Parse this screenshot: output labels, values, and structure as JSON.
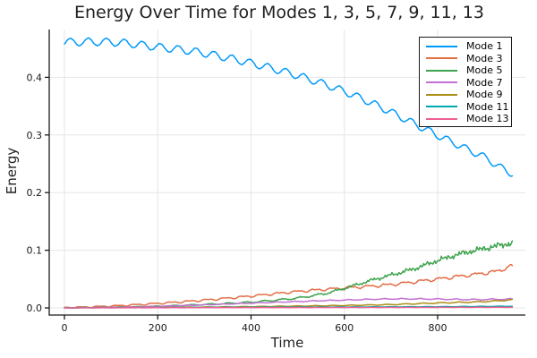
{
  "figure": {
    "background": "#ffffff",
    "title_color": "#1f1f1f"
  },
  "chart_data": {
    "type": "line",
    "title": "Energy Over Time for Modes 1, 3, 5, 7, 9, 11, 13",
    "xlabel": "Time",
    "ylabel": "Energy",
    "xlim": [
      -32.6,
      988
    ],
    "ylim": [
      -0.0124,
      0.4829
    ],
    "grid": true,
    "grid_color": "#e6e6e6",
    "axis_color": "#1a1a1a",
    "tick_label_color": "#1a1a1a",
    "legend_position": "top-right",
    "xticks": [
      {
        "value": 0,
        "label": "0"
      },
      {
        "value": 200,
        "label": "200"
      },
      {
        "value": 400,
        "label": "400"
      },
      {
        "value": 600,
        "label": "600"
      },
      {
        "value": 800,
        "label": "800"
      }
    ],
    "yticks": [
      {
        "value": 0.0,
        "label": "0.0"
      },
      {
        "value": 0.1,
        "label": "0.1"
      },
      {
        "value": 0.2,
        "label": "0.2"
      },
      {
        "value": 0.3,
        "label": "0.3"
      },
      {
        "value": 0.4,
        "label": "0.4"
      }
    ],
    "sampling": {
      "t_start": 0,
      "t_end": 960,
      "dt": 2
    },
    "series": [
      {
        "name": "Mode 1",
        "color": "#009af9",
        "keyframes": [
          [
            0,
            0.461
          ],
          [
            60,
            0.4615
          ],
          [
            120,
            0.46
          ],
          [
            200,
            0.4525
          ],
          [
            280,
            0.4445
          ],
          [
            360,
            0.432
          ],
          [
            440,
            0.4165
          ],
          [
            520,
            0.398
          ],
          [
            600,
            0.3755
          ],
          [
            680,
            0.3475
          ],
          [
            760,
            0.3155
          ],
          [
            840,
            0.2845
          ],
          [
            900,
            0.2615
          ],
          [
            960,
            0.2335
          ]
        ],
        "osc": {
          "type": "sin",
          "period": 38.5,
          "phase": -0.5,
          "amp0": 0.0065,
          "amp1": 0.006
        },
        "noise": {
          "rel": 0.0015,
          "seed": 1
        }
      },
      {
        "name": "Mode 3",
        "color": "#e36f47",
        "keyframes": [
          [
            0,
            0.0006
          ],
          [
            100,
            0.0032
          ],
          [
            200,
            0.0078
          ],
          [
            300,
            0.0135
          ],
          [
            400,
            0.0205
          ],
          [
            500,
            0.0285
          ],
          [
            600,
            0.0345
          ],
          [
            700,
            0.0405
          ],
          [
            800,
            0.05
          ],
          [
            880,
            0.058
          ],
          [
            930,
            0.064
          ],
          [
            960,
            0.073
          ]
        ],
        "osc": {
          "type": "step",
          "period": 38.5,
          "phase": 2.0,
          "amp0": 0.001,
          "amp1": 0.0028
        },
        "noise": {
          "rel": 0.02,
          "seed": 2
        }
      },
      {
        "name": "Mode 5",
        "color": "#3da44d",
        "keyframes": [
          [
            0,
            0.0003
          ],
          [
            100,
            0.0012
          ],
          [
            200,
            0.0028
          ],
          [
            300,
            0.006
          ],
          [
            400,
            0.01
          ],
          [
            500,
            0.017
          ],
          [
            560,
            0.025
          ],
          [
            600,
            0.034
          ],
          [
            650,
            0.046
          ],
          [
            700,
            0.057
          ],
          [
            750,
            0.068
          ],
          [
            800,
            0.082
          ],
          [
            850,
            0.094
          ],
          [
            900,
            0.103
          ],
          [
            960,
            0.112
          ]
        ],
        "osc": {
          "type": "sin",
          "period": 38.5,
          "phase": 0.9,
          "amp0": 0.0003,
          "amp1": 0.0022
        },
        "noise": {
          "rel": 0.05,
          "seed": 3
        }
      },
      {
        "name": "Mode 7",
        "color": "#c371d2",
        "keyframes": [
          [
            0,
            0.0003
          ],
          [
            100,
            0.0013
          ],
          [
            200,
            0.003
          ],
          [
            300,
            0.0056
          ],
          [
            400,
            0.0085
          ],
          [
            500,
            0.0115
          ],
          [
            600,
            0.014
          ],
          [
            700,
            0.016
          ],
          [
            800,
            0.0158
          ],
          [
            880,
            0.015
          ],
          [
            960,
            0.0158
          ]
        ],
        "osc": {
          "type": "dip",
          "period": 38.5,
          "phase": 0.6,
          "amp0": 0.0005,
          "amp1": 0.002
        },
        "noise": {
          "rel": 0.03,
          "seed": 4
        }
      },
      {
        "name": "Mode 9",
        "color": "#ac8e17",
        "keyframes": [
          [
            0,
            0.0002
          ],
          [
            200,
            0.0009
          ],
          [
            400,
            0.0022
          ],
          [
            600,
            0.0042
          ],
          [
            700,
            0.0058
          ],
          [
            800,
            0.0085
          ],
          [
            880,
            0.0102
          ],
          [
            920,
            0.0118
          ],
          [
            960,
            0.014
          ]
        ],
        "osc": {
          "type": "sin",
          "period": 38.5,
          "phase": 1.8,
          "amp0": 0.0001,
          "amp1": 0.0008
        },
        "noise": {
          "rel": 0.05,
          "seed": 5
        }
      },
      {
        "name": "Mode 11",
        "color": "#00a9ad",
        "keyframes": [
          [
            0,
            0.00015
          ],
          [
            200,
            0.0006
          ],
          [
            400,
            0.0011
          ],
          [
            600,
            0.0016
          ],
          [
            800,
            0.0021
          ],
          [
            960,
            0.0028
          ]
        ],
        "osc": {
          "type": "sin",
          "period": 38.5,
          "phase": 0.3,
          "amp0": 0.0001,
          "amp1": 0.0003
        },
        "noise": {
          "rel": 0.04,
          "seed": 6
        }
      },
      {
        "name": "Mode 13",
        "color": "#ed5e92",
        "keyframes": [
          [
            0,
            0.0001
          ],
          [
            200,
            0.0003
          ],
          [
            400,
            0.0005
          ],
          [
            600,
            0.0007
          ],
          [
            800,
            0.0009
          ],
          [
            960,
            0.0011
          ]
        ],
        "osc": {
          "type": "sin",
          "period": 38.5,
          "phase": 1.1,
          "amp0": 5e-05,
          "amp1": 0.0002
        },
        "noise": {
          "rel": 0.04,
          "seed": 7
        }
      }
    ]
  }
}
